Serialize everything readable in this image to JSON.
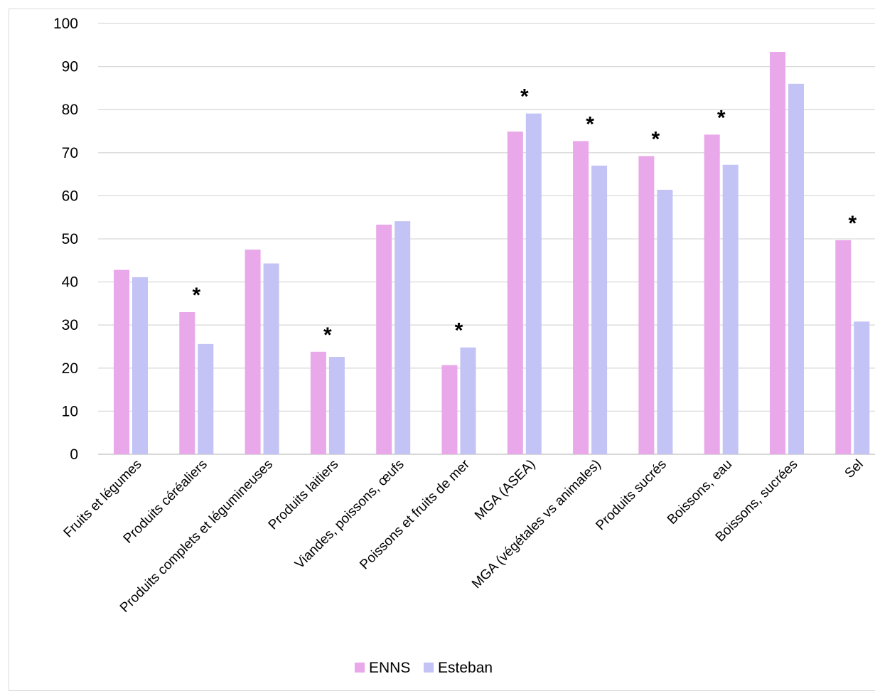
{
  "chart_data": {
    "type": "bar",
    "title": "",
    "xlabel": "",
    "ylabel": "",
    "ylim": [
      0,
      100
    ],
    "yticks": [
      0,
      10,
      20,
      30,
      40,
      50,
      60,
      70,
      80,
      90,
      100
    ],
    "grid": true,
    "legend_position": "bottom",
    "categories": [
      "Fruits et légumes",
      "Produits céréaliers",
      "Produits complets et légumineuses",
      "Produits laitiers",
      "Viandes, poissons, œufs",
      "Poissons et fruits de mer",
      "MGA (ASEA)",
      "MGA (végétales vs animales)",
      "Produits sucrés",
      "Boissons, eau",
      "Boissons, sucrées",
      "Sel"
    ],
    "series": [
      {
        "name": "ENNS",
        "color": "#e8a8ea",
        "values": [
          42.8,
          33.0,
          47.5,
          23.8,
          53.3,
          20.7,
          74.9,
          72.7,
          69.2,
          74.2,
          93.4,
          49.7
        ]
      },
      {
        "name": "Esteban",
        "color": "#c3c3f5",
        "values": [
          41.1,
          25.6,
          44.3,
          22.6,
          54.1,
          24.8,
          79.1,
          67.0,
          61.4,
          67.2,
          86.0,
          30.8
        ]
      }
    ],
    "significance_marker": "*",
    "significant_categories": [
      "Produits céréaliers",
      "Produits laitiers",
      "Poissons et fruits de mer",
      "MGA (ASEA)",
      "MGA (végétales vs animales)",
      "Produits sucrés",
      "Boissons, eau",
      "Sel"
    ]
  }
}
